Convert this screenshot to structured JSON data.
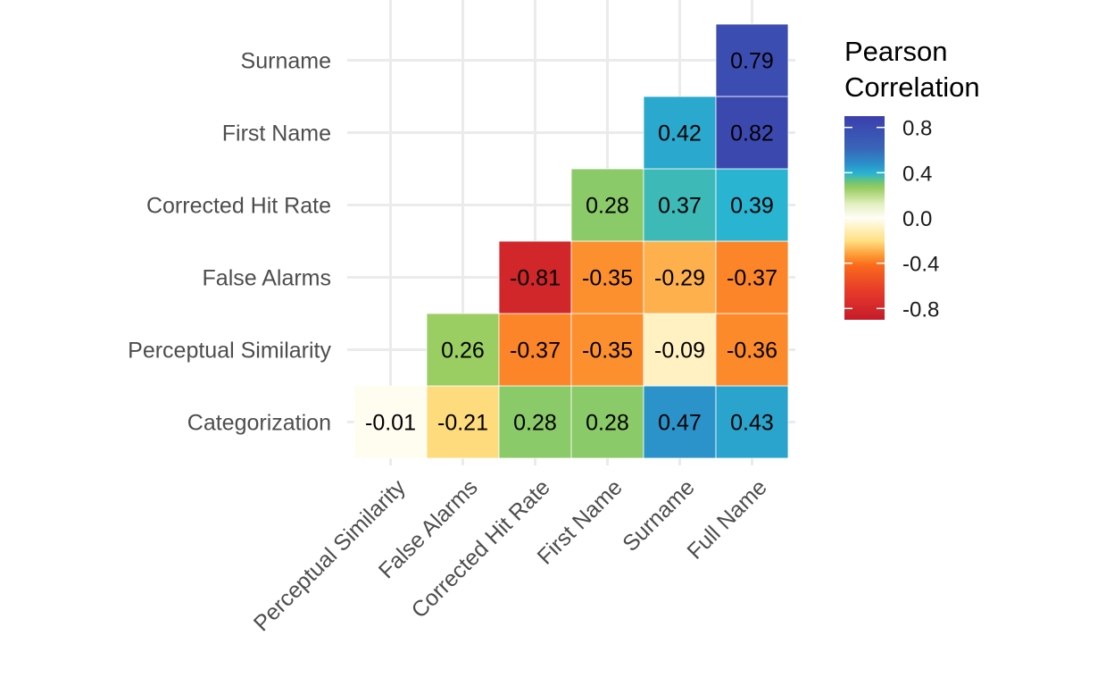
{
  "chart_data": {
    "type": "heatmap",
    "title": "",
    "xlabel": "",
    "ylabel": "",
    "x_categories": [
      "Perceptual Similarity",
      "False Alarms",
      "Corrected Hit Rate",
      "First Name",
      "Surname",
      "Full Name"
    ],
    "y_categories": [
      "Categorization",
      "Perceptual Similarity",
      "False Alarms",
      "Corrected Hit Rate",
      "First Name",
      "Surname"
    ],
    "cells": [
      {
        "x": "Perceptual Similarity",
        "y": "Categorization",
        "value": -0.01,
        "label": "-0.01"
      },
      {
        "x": "False Alarms",
        "y": "Categorization",
        "value": -0.21,
        "label": "-0.21"
      },
      {
        "x": "Corrected Hit Rate",
        "y": "Categorization",
        "value": 0.28,
        "label": "0.28"
      },
      {
        "x": "First Name",
        "y": "Categorization",
        "value": 0.28,
        "label": "0.28"
      },
      {
        "x": "Surname",
        "y": "Categorization",
        "value": 0.47,
        "label": "0.47"
      },
      {
        "x": "Full Name",
        "y": "Categorization",
        "value": 0.43,
        "label": "0.43"
      },
      {
        "x": "False Alarms",
        "y": "Perceptual Similarity",
        "value": 0.26,
        "label": "0.26"
      },
      {
        "x": "Corrected Hit Rate",
        "y": "Perceptual Similarity",
        "value": -0.37,
        "label": "-0.37"
      },
      {
        "x": "First Name",
        "y": "Perceptual Similarity",
        "value": -0.35,
        "label": "-0.35"
      },
      {
        "x": "Surname",
        "y": "Perceptual Similarity",
        "value": -0.09,
        "label": "-0.09"
      },
      {
        "x": "Full Name",
        "y": "Perceptual Similarity",
        "value": -0.36,
        "label": "-0.36"
      },
      {
        "x": "Corrected Hit Rate",
        "y": "False Alarms",
        "value": -0.81,
        "label": "-0.81"
      },
      {
        "x": "First Name",
        "y": "False Alarms",
        "value": -0.35,
        "label": "-0.35"
      },
      {
        "x": "Surname",
        "y": "False Alarms",
        "value": -0.29,
        "label": "-0.29"
      },
      {
        "x": "Full Name",
        "y": "False Alarms",
        "value": -0.37,
        "label": "-0.37"
      },
      {
        "x": "First Name",
        "y": "Corrected Hit Rate",
        "value": 0.28,
        "label": "0.28"
      },
      {
        "x": "Surname",
        "y": "Corrected Hit Rate",
        "value": 0.37,
        "label": "0.37"
      },
      {
        "x": "Full Name",
        "y": "Corrected Hit Rate",
        "value": 0.39,
        "label": "0.39"
      },
      {
        "x": "Surname",
        "y": "First Name",
        "value": 0.42,
        "label": "0.42"
      },
      {
        "x": "Full Name",
        "y": "First Name",
        "value": 0.82,
        "label": "0.82"
      },
      {
        "x": "Full Name",
        "y": "Surname",
        "value": 0.79,
        "label": "0.79"
      }
    ],
    "legend": {
      "title_lines": [
        "Pearson",
        "Correlation"
      ],
      "range": [
        -0.9,
        0.9
      ],
      "ticks": [
        0.8,
        0.4,
        0.0,
        -0.4,
        -0.8
      ],
      "tick_labels": [
        "0.8",
        "0.4",
        "0.0",
        "-0.4",
        "-0.8"
      ],
      "position": "right"
    },
    "color_scale": {
      "name": "Spectral",
      "stops": [
        {
          "value": -0.9,
          "color": "#c51b2a"
        },
        {
          "value": -0.65,
          "color": "#e53a2a"
        },
        {
          "value": -0.42,
          "color": "#fa6a1c"
        },
        {
          "value": -0.33,
          "color": "#fd9a33"
        },
        {
          "value": -0.2,
          "color": "#fee184"
        },
        {
          "value": -0.05,
          "color": "#fff7d8"
        },
        {
          "value": 0.0,
          "color": "#fffdf6"
        },
        {
          "value": 0.12,
          "color": "#e4f0c2"
        },
        {
          "value": 0.26,
          "color": "#9acd62"
        },
        {
          "value": 0.32,
          "color": "#6ec476"
        },
        {
          "value": 0.39,
          "color": "#29b4d1"
        },
        {
          "value": 0.48,
          "color": "#2b8fc9"
        },
        {
          "value": 0.62,
          "color": "#3a64b8"
        },
        {
          "value": 0.9,
          "color": "#3b3eac"
        }
      ]
    },
    "grid": true
  }
}
